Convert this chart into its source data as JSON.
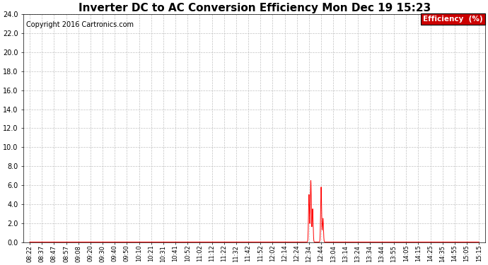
{
  "title": "Inverter DC to AC Conversion Efficiency Mon Dec 19 15:23",
  "copyright": "Copyright 2016 Cartronics.com",
  "legend_label": "Efficiency  (%)",
  "legend_bg": "#cc0000",
  "legend_fg": "#ffffff",
  "line_color": "#ff0000",
  "grid_color": "#bbbbbb",
  "background_color": "#ffffff",
  "ylim": [
    0.0,
    24.0
  ],
  "yticks": [
    0.0,
    2.0,
    4.0,
    6.0,
    8.0,
    10.0,
    12.0,
    14.0,
    16.0,
    18.0,
    20.0,
    22.0,
    24.0
  ],
  "xtick_labels": [
    "08:22",
    "08:37",
    "08:47",
    "08:57",
    "09:08",
    "09:20",
    "09:30",
    "09:40",
    "09:50",
    "10:10",
    "10:21",
    "10:31",
    "10:41",
    "10:52",
    "11:02",
    "11:12",
    "11:22",
    "11:32",
    "11:42",
    "11:52",
    "12:02",
    "12:14",
    "12:24",
    "12:34",
    "12:44",
    "13:04",
    "13:14",
    "13:24",
    "13:34",
    "13:44",
    "13:55",
    "14:05",
    "14:15",
    "14:25",
    "14:35",
    "14:55",
    "15:05",
    "15:15"
  ],
  "title_fontsize": 11,
  "copyright_fontsize": 7,
  "tick_fontsize": 6,
  "ytick_fontsize": 7,
  "figwidth": 6.9,
  "figheight": 3.75,
  "dpi": 100,
  "spikes_x": [
    23,
    23,
    23,
    23,
    24,
    24,
    24,
    24,
    24,
    24,
    25,
    25
  ],
  "spikes_y": [
    0.0,
    3.2,
    5.0,
    0.0,
    0.0,
    6.5,
    5.5,
    2.0,
    0.5,
    0.0,
    0.0,
    0.0
  ],
  "baseline_y": 0.0
}
